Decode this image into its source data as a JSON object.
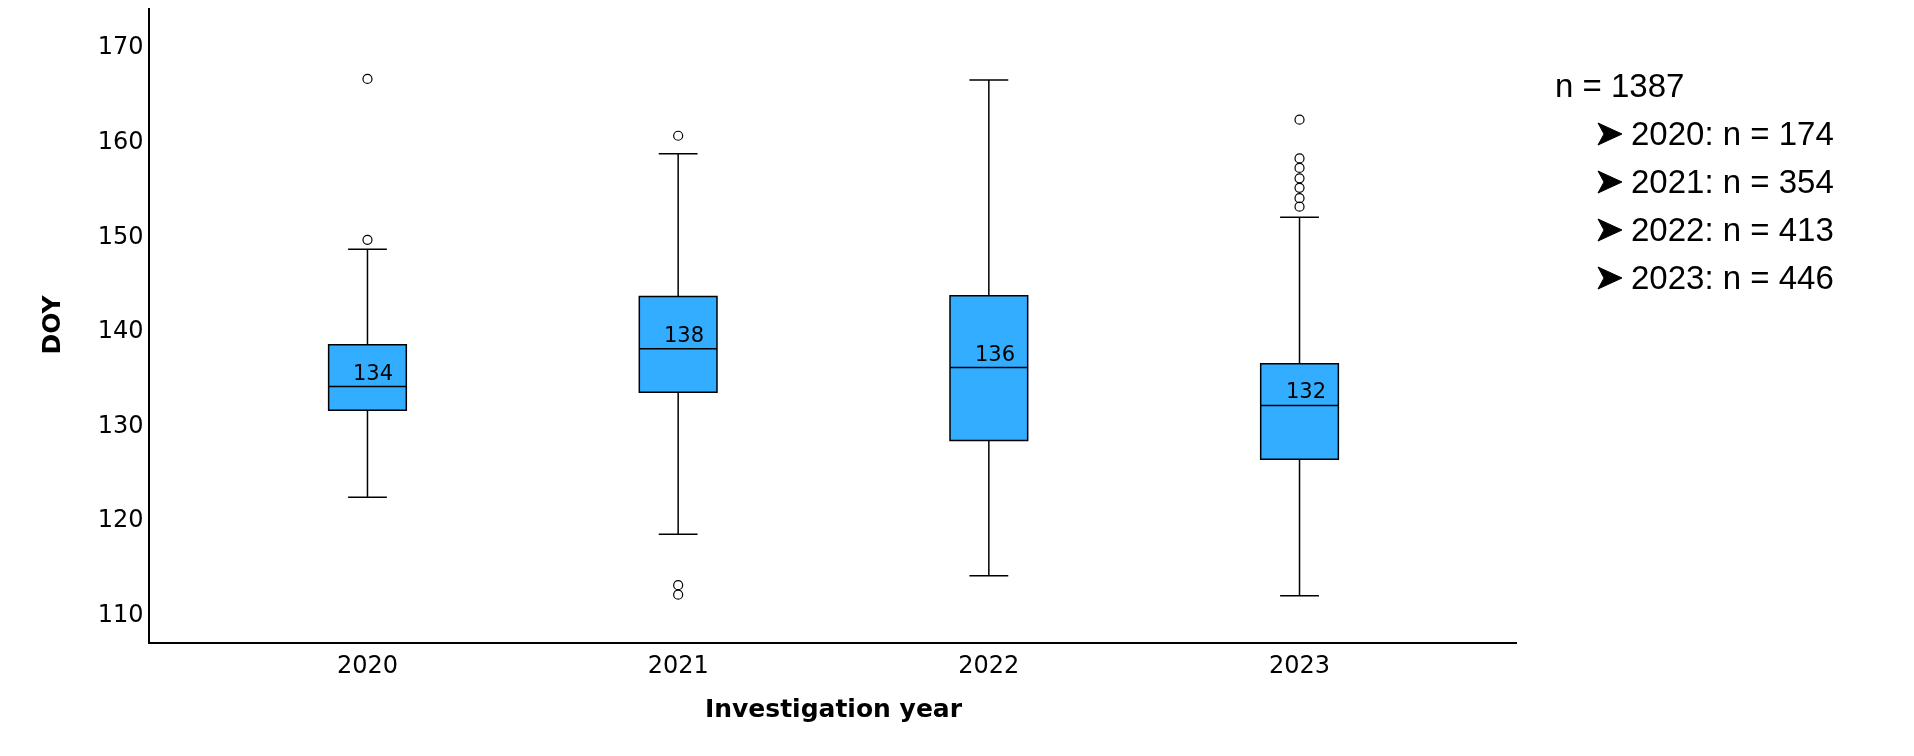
{
  "chart_data": {
    "type": "box",
    "xlabel": "Investigation year",
    "ylabel": "DOY",
    "categories": [
      "2020",
      "2021",
      "2022",
      "2023"
    ],
    "color": "#33adff",
    "marker": "circle",
    "grid": false,
    "ylim": [
      107,
      174
    ],
    "yticks": [
      110,
      120,
      130,
      140,
      150,
      160,
      170
    ],
    "boxes": [
      {
        "low": 122.3,
        "q1": 131.5,
        "median": 134,
        "q3": 138.4,
        "high": 148.5,
        "outliers": [
          149.5,
          166.5
        ]
      },
      {
        "low": 118.4,
        "q1": 133.4,
        "median": 138,
        "q3": 143.5,
        "high": 158.6,
        "outliers": [
          160.5,
          113,
          112
        ]
      },
      {
        "low": 114,
        "q1": 128.3,
        "median": 136,
        "q3": 143.6,
        "high": 166.4
      },
      {
        "low": 111.9,
        "q1": 126.3,
        "median": 132,
        "q3": 136.4,
        "high": 151.9,
        "outliers": [
          162.2,
          158.1,
          157.1,
          156,
          155,
          153.9,
          153
        ]
      }
    ],
    "annotations": [
      {
        "text": "134",
        "x": "2020",
        "y": 134
      },
      {
        "text": "138",
        "x": "2021",
        "y": 138
      },
      {
        "text": "136",
        "x": "2022",
        "y": 136
      },
      {
        "text": "132",
        "x": "2023",
        "y": 132
      },
      "n = 1387",
      "2020: n = 174",
      "2021: n = 354",
      "2022: n = 413",
      "2023: n = 446"
    ]
  }
}
